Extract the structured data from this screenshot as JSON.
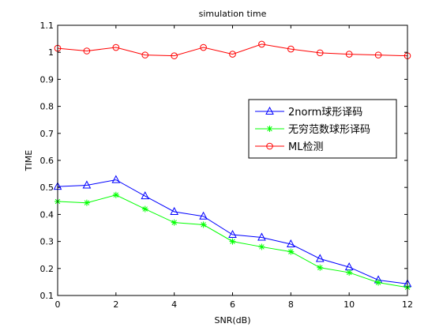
{
  "chart_data": {
    "type": "line",
    "title": "simulation time",
    "xlabel": "SNR(dB)",
    "ylabel": "TIME",
    "xlim": [
      0,
      12
    ],
    "ylim": [
      0.1,
      1.1
    ],
    "xticks": [
      0,
      2,
      4,
      6,
      8,
      10,
      12
    ],
    "yticks": [
      0.1,
      0.2,
      0.3,
      0.4,
      0.5,
      0.6,
      0.7,
      0.8,
      0.9,
      1,
      1.1
    ],
    "grid": false,
    "legend_position": "right",
    "x": [
      0,
      1,
      2,
      3,
      4,
      5,
      6,
      7,
      8,
      9,
      10,
      11,
      12
    ],
    "series": [
      {
        "name": "2norm球形译码",
        "color": "#0000ff",
        "marker": "triangle",
        "values": [
          0.503,
          0.508,
          0.528,
          0.468,
          0.41,
          0.393,
          0.325,
          0.315,
          0.29,
          0.236,
          0.205,
          0.157,
          0.143
        ]
      },
      {
        "name": "无穷范数球形译码",
        "color": "#00ff00",
        "marker": "star",
        "values": [
          0.448,
          0.443,
          0.472,
          0.42,
          0.37,
          0.362,
          0.3,
          0.28,
          0.262,
          0.203,
          0.185,
          0.148,
          0.13
        ]
      },
      {
        "name": "ML检测",
        "color": "#ff0000",
        "marker": "circle",
        "values": [
          1.015,
          1.005,
          1.018,
          0.99,
          0.987,
          1.018,
          0.993,
          1.03,
          1.012,
          0.998,
          0.993,
          0.99,
          0.987
        ]
      }
    ]
  }
}
